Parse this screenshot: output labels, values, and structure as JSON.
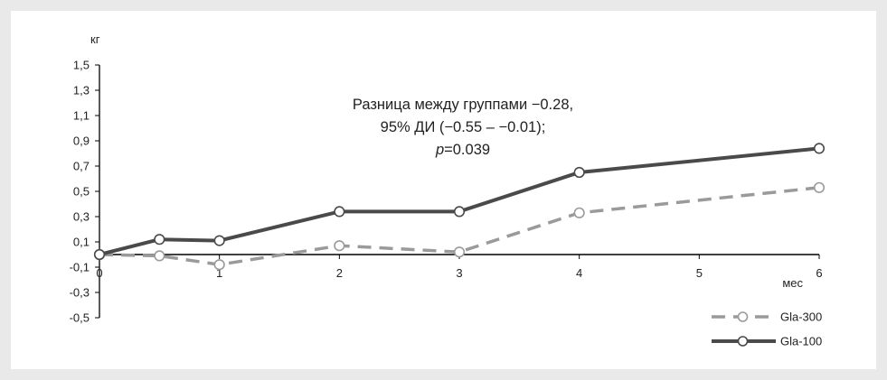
{
  "chart_data": {
    "type": "line",
    "y_unit_label": "кг",
    "x_unit_label": "мес",
    "x_ticks": [
      "0",
      "1",
      "2",
      "3",
      "4",
      "5",
      "6"
    ],
    "y_ticks": [
      "1,5",
      "1,3",
      "1,1",
      "0,9",
      "0,7",
      "0,5",
      "0,3",
      "0,1",
      "-0,1",
      "-0,3",
      "-0,5"
    ],
    "y_tick_values": [
      1.5,
      1.3,
      1.1,
      0.9,
      0.7,
      0.5,
      0.3,
      0.1,
      -0.1,
      -0.3,
      -0.5
    ],
    "xlim": [
      0,
      6
    ],
    "ylim": [
      -0.5,
      1.5
    ],
    "grid": false,
    "legend_position": "bottom-right",
    "annotation": {
      "line1": "Разница между группами −0.28,",
      "line2": "95% ДИ (−0.55 – −0.01);",
      "line3_italic": "p",
      "line3_rest": "=0.039"
    },
    "series": [
      {
        "name": "Gla-300",
        "style": "dashed",
        "color": "#9a9a9a",
        "x": [
          0,
          0.5,
          1,
          2,
          3,
          4,
          6
        ],
        "y": [
          0.0,
          -0.01,
          -0.08,
          0.07,
          0.02,
          0.33,
          0.53
        ]
      },
      {
        "name": "Gla-100",
        "style": "solid",
        "color": "#4a4a4a",
        "x": [
          0,
          0.5,
          1,
          2,
          3,
          4,
          6
        ],
        "y": [
          0.0,
          0.12,
          0.11,
          0.34,
          0.34,
          0.65,
          0.84
        ]
      }
    ]
  }
}
